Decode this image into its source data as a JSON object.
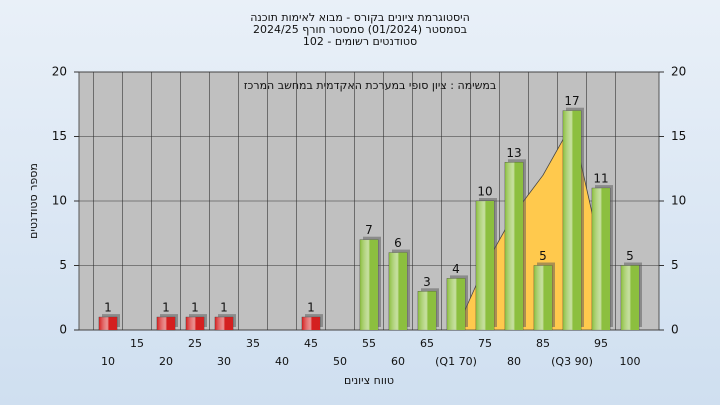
{
  "chart_data": {
    "type": "bar",
    "title": [
      "היסטוגרמת ציונים בקורס - מבוא לאימות תוכנה",
      "בסמסטר  (01/2024)  סמסטר חורף 2024/25",
      "סטודנטים רשומים - 102"
    ],
    "annotation": "במשימה : ציון סופי במערכת האקדמית במחשב המרכז",
    "x_label": "טווח ציונים",
    "y_label": "מספר סטודנטים",
    "categories": [
      "10",
      "15",
      "20",
      "25",
      "30",
      "35",
      "40",
      "45",
      "50",
      "55",
      "60",
      "65",
      "(Q1 70)",
      "75",
      "80",
      "85",
      "(Q3 90)",
      "95",
      "100"
    ],
    "values": [
      1,
      0,
      1,
      1,
      1,
      0,
      0,
      1,
      0,
      7,
      6,
      3,
      4,
      10,
      13,
      5,
      17,
      11,
      5
    ],
    "bar_colors": [
      "#d42020",
      "#d42020",
      "#d42020",
      "#d42020",
      "#d42020",
      "#d42020",
      "#d42020",
      "#d42020",
      "#d42020",
      "#8cbf3f",
      "#8cbf3f",
      "#8cbf3f",
      "#8cbf3f",
      "#8cbf3f",
      "#8cbf3f",
      "#8cbf3f",
      "#8cbf3f",
      "#8cbf3f",
      "#8cbf3f"
    ],
    "area_values": [
      null,
      null,
      null,
      null,
      null,
      null,
      null,
      null,
      null,
      null,
      null,
      null,
      0,
      5,
      9,
      12,
      16,
      6,
      null
    ],
    "area_color": "#ffc94d",
    "ylim": [
      0,
      20
    ],
    "yticks": [
      0,
      5,
      10,
      15,
      20
    ],
    "y2lim": [
      0,
      20
    ],
    "y2ticks": [
      0,
      5,
      10,
      15,
      20
    ],
    "grid": true
  }
}
